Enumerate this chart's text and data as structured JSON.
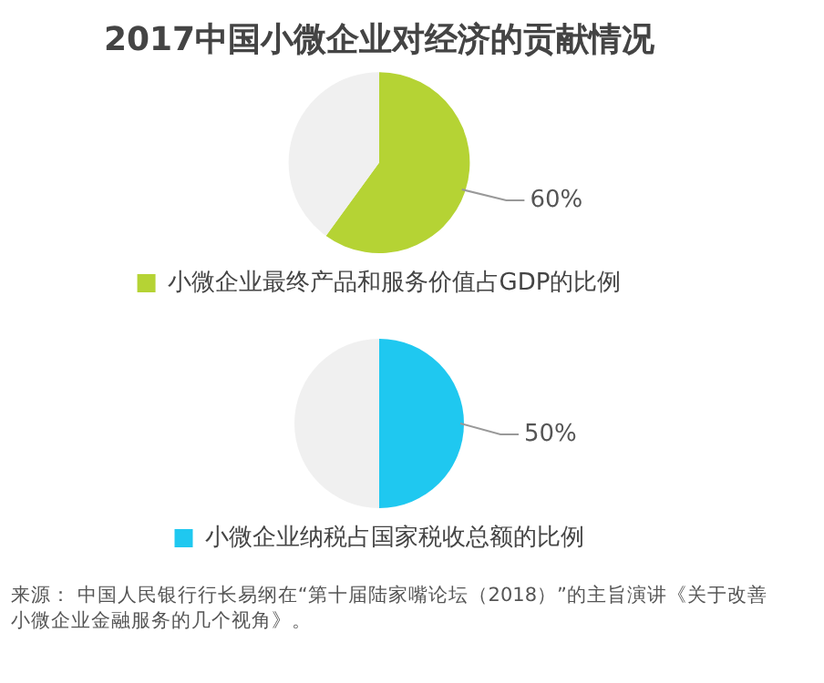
{
  "chart_data": [
    {
      "type": "pie",
      "title": "2017中国小微企业对经济的贡献情况",
      "categories": [
        "小微企业最终产品和服务价值占GDP的比例",
        null
      ],
      "values": [
        60,
        40
      ],
      "colors": [
        "#b5d334",
        "#f0f0f0"
      ],
      "value_labels": [
        "60%",
        null
      ],
      "legend": "bottom"
    },
    {
      "type": "pie",
      "categories": [
        "小微企业纳税占国家税收总额的比例",
        null
      ],
      "values": [
        50,
        50
      ],
      "colors": [
        "#1fc8f0",
        "#f0f0f0"
      ],
      "value_labels": [
        "50%",
        null
      ],
      "legend": "bottom",
      "annotations": [
        "来源： 中国人民银行行长易纲在“第十届陆家嘴论坛（2018）”的主旨演讲《关于改善小微企业金融服务的几个视角》。"
      ]
    }
  ]
}
